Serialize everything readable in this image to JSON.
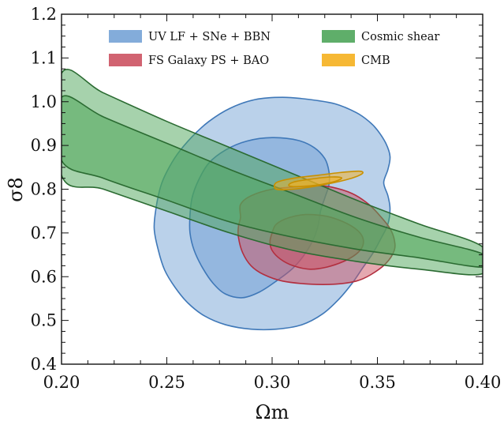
{
  "chart_data": {
    "type": "contour",
    "xlabel": "Ωm",
    "ylabel": "σ8",
    "xlim": [
      0.2,
      0.4
    ],
    "ylim": [
      0.4,
      1.2
    ],
    "xticks": [
      "0.20",
      "0.25",
      "0.30",
      "0.35",
      "0.40"
    ],
    "yticks": [
      "0.4",
      "0.5",
      "0.6",
      "0.7",
      "0.8",
      "0.9",
      "1.0",
      "1.1",
      "1.2"
    ],
    "legend_position": "top",
    "series": [
      {
        "name": "UV LF + SNe + BBN",
        "fill": "#75a3d6",
        "edge": "#3f78b8",
        "outer": [
          [
            0.25,
            0.84
          ],
          [
            0.255,
            0.88
          ],
          [
            0.262,
            0.92
          ],
          [
            0.27,
            0.955
          ],
          [
            0.28,
            0.985
          ],
          [
            0.292,
            1.005
          ],
          [
            0.305,
            1.01
          ],
          [
            0.318,
            1.005
          ],
          [
            0.33,
            0.995
          ],
          [
            0.34,
            0.975
          ],
          [
            0.346,
            0.955
          ],
          [
            0.35,
            0.935
          ],
          [
            0.354,
            0.905
          ],
          [
            0.356,
            0.875
          ],
          [
            0.355,
            0.845
          ],
          [
            0.353,
            0.815
          ],
          [
            0.355,
            0.785
          ],
          [
            0.356,
            0.755
          ],
          [
            0.355,
            0.72
          ],
          [
            0.352,
            0.69
          ],
          [
            0.348,
            0.655
          ],
          [
            0.343,
            0.62
          ],
          [
            0.338,
            0.585
          ],
          [
            0.332,
            0.55
          ],
          [
            0.324,
            0.515
          ],
          [
            0.314,
            0.49
          ],
          [
            0.302,
            0.48
          ],
          [
            0.29,
            0.48
          ],
          [
            0.278,
            0.49
          ],
          [
            0.268,
            0.51
          ],
          [
            0.26,
            0.54
          ],
          [
            0.254,
            0.575
          ],
          [
            0.249,
            0.615
          ],
          [
            0.246,
            0.66
          ],
          [
            0.244,
            0.71
          ],
          [
            0.245,
            0.76
          ],
          [
            0.247,
            0.805
          ]
        ],
        "inner": [
          [
            0.265,
            0.82
          ],
          [
            0.27,
            0.86
          ],
          [
            0.278,
            0.89
          ],
          [
            0.288,
            0.91
          ],
          [
            0.3,
            0.918
          ],
          [
            0.312,
            0.912
          ],
          [
            0.32,
            0.895
          ],
          [
            0.325,
            0.87
          ],
          [
            0.327,
            0.84
          ],
          [
            0.327,
            0.81
          ],
          [
            0.325,
            0.78
          ],
          [
            0.323,
            0.75
          ],
          [
            0.322,
            0.72
          ],
          [
            0.32,
            0.69
          ],
          [
            0.316,
            0.655
          ],
          [
            0.31,
            0.62
          ],
          [
            0.302,
            0.59
          ],
          [
            0.294,
            0.565
          ],
          [
            0.286,
            0.552
          ],
          [
            0.278,
            0.56
          ],
          [
            0.272,
            0.585
          ],
          [
            0.267,
            0.62
          ],
          [
            0.263,
            0.66
          ],
          [
            0.261,
            0.7
          ],
          [
            0.261,
            0.74
          ],
          [
            0.262,
            0.78
          ]
        ]
      },
      {
        "name": "FS Galaxy PS + BAO",
        "fill": "#cc5262",
        "edge": "#b22f3f",
        "outer": [
          [
            0.285,
            0.735
          ],
          [
            0.285,
            0.765
          ],
          [
            0.29,
            0.785
          ],
          [
            0.3,
            0.8
          ],
          [
            0.31,
            0.805
          ],
          [
            0.32,
            0.808
          ],
          [
            0.328,
            0.805
          ],
          [
            0.338,
            0.79
          ],
          [
            0.346,
            0.765
          ],
          [
            0.352,
            0.735
          ],
          [
            0.356,
            0.71
          ],
          [
            0.358,
            0.685
          ],
          [
            0.358,
            0.66
          ],
          [
            0.354,
            0.63
          ],
          [
            0.347,
            0.605
          ],
          [
            0.34,
            0.59
          ],
          [
            0.33,
            0.583
          ],
          [
            0.318,
            0.583
          ],
          [
            0.305,
            0.59
          ],
          [
            0.296,
            0.605
          ],
          [
            0.29,
            0.625
          ],
          [
            0.286,
            0.655
          ],
          [
            0.284,
            0.69
          ],
          [
            0.284,
            0.715
          ]
        ],
        "inner": [
          [
            0.3,
            0.7
          ],
          [
            0.302,
            0.72
          ],
          [
            0.308,
            0.735
          ],
          [
            0.316,
            0.742
          ],
          [
            0.326,
            0.738
          ],
          [
            0.334,
            0.725
          ],
          [
            0.34,
            0.708
          ],
          [
            0.343,
            0.69
          ],
          [
            0.343,
            0.67
          ],
          [
            0.34,
            0.652
          ],
          [
            0.334,
            0.635
          ],
          [
            0.326,
            0.622
          ],
          [
            0.318,
            0.617
          ],
          [
            0.31,
            0.625
          ],
          [
            0.304,
            0.64
          ],
          [
            0.3,
            0.66
          ],
          [
            0.299,
            0.68
          ]
        ]
      },
      {
        "name": "Cosmic shear",
        "fill": "#4ea55a",
        "edge": "#2b6b32",
        "outer": [
          [
            0.2,
            1.065
          ],
          [
            0.22,
            1.02
          ],
          [
            0.25,
            0.955
          ],
          [
            0.28,
            0.895
          ],
          [
            0.31,
            0.835
          ],
          [
            0.34,
            0.775
          ],
          [
            0.37,
            0.72
          ],
          [
            0.4,
            0.668
          ],
          [
            0.4,
            0.607
          ],
          [
            0.37,
            0.617
          ],
          [
            0.34,
            0.635
          ],
          [
            0.31,
            0.66
          ],
          [
            0.28,
            0.7
          ],
          [
            0.25,
            0.75
          ],
          [
            0.22,
            0.8
          ],
          [
            0.2,
            0.832
          ]
        ],
        "inner": [
          [
            0.2,
            1.01
          ],
          [
            0.22,
            0.965
          ],
          [
            0.25,
            0.905
          ],
          [
            0.28,
            0.845
          ],
          [
            0.31,
            0.79
          ],
          [
            0.34,
            0.735
          ],
          [
            0.37,
            0.69
          ],
          [
            0.4,
            0.652
          ],
          [
            0.4,
            0.622
          ],
          [
            0.37,
            0.643
          ],
          [
            0.34,
            0.663
          ],
          [
            0.31,
            0.69
          ],
          [
            0.28,
            0.725
          ],
          [
            0.25,
            0.775
          ],
          [
            0.22,
            0.825
          ],
          [
            0.2,
            0.866
          ]
        ]
      },
      {
        "name": "CMB",
        "fill": "#f5b01e",
        "edge": "#c99000",
        "outer": [
          [
            0.302,
            0.8
          ],
          [
            0.302,
            0.815
          ],
          [
            0.31,
            0.825
          ],
          [
            0.322,
            0.832
          ],
          [
            0.332,
            0.838
          ],
          [
            0.342,
            0.841
          ],
          [
            0.342,
            0.833
          ],
          [
            0.334,
            0.82
          ],
          [
            0.322,
            0.808
          ],
          [
            0.31,
            0.8
          ]
        ],
        "inner": [
          [
            0.308,
            0.808
          ],
          [
            0.31,
            0.816
          ],
          [
            0.318,
            0.823
          ],
          [
            0.328,
            0.828
          ],
          [
            0.333,
            0.826
          ],
          [
            0.33,
            0.818
          ],
          [
            0.322,
            0.81
          ],
          [
            0.313,
            0.806
          ]
        ]
      }
    ]
  }
}
